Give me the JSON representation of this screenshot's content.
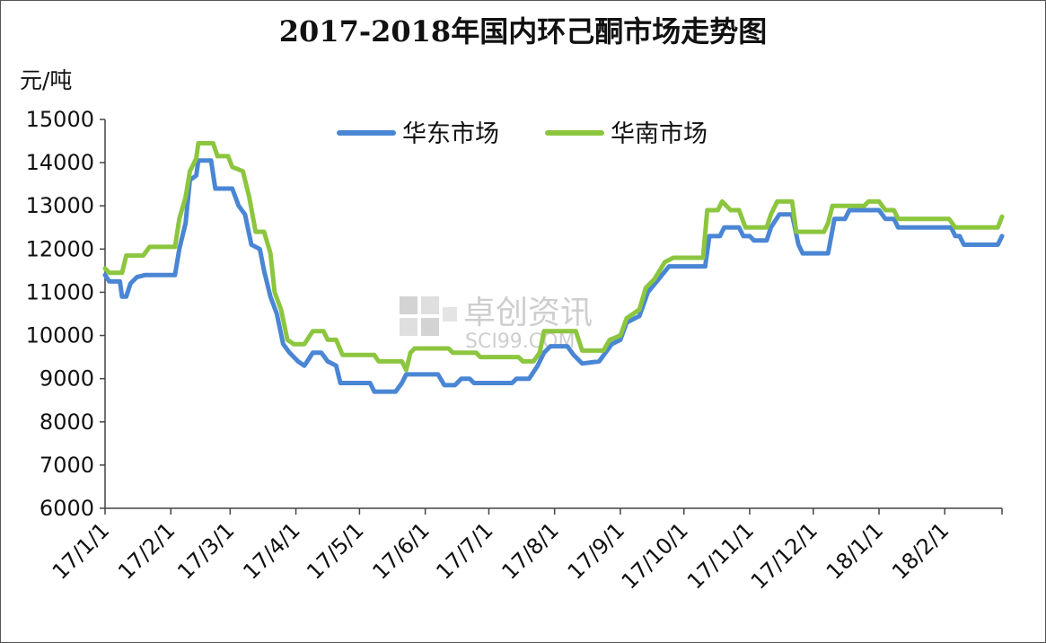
{
  "chart_data": {
    "type": "line",
    "title": "2017-2018年国内环己酮市场走势图",
    "ylabel": "元/吨",
    "xlabel": "",
    "ylim": [
      6000,
      15000
    ],
    "yticks": [
      6000,
      7000,
      8000,
      9000,
      10000,
      11000,
      12000,
      13000,
      14000,
      15000
    ],
    "xlim": [
      "2017-01-01",
      "2018-02-28"
    ],
    "xticks": [
      "17/1/1",
      "17/2/1",
      "17/3/1",
      "17/4/1",
      "17/5/1",
      "17/6/1",
      "17/7/1",
      "17/8/1",
      "17/9/1",
      "17/10/1",
      "17/11/1",
      "17/12/1",
      "18/1/1",
      "18/2/1"
    ],
    "xtick_dates": [
      "2017-01-01",
      "2017-02-01",
      "2017-03-01",
      "2017-04-01",
      "2017-05-01",
      "2017-06-01",
      "2017-07-01",
      "2017-08-01",
      "2017-09-01",
      "2017-10-01",
      "2017-11-01",
      "2017-12-01",
      "2018-01-01",
      "2018-02-01"
    ],
    "grid": false,
    "legend_position": "top",
    "series": [
      {
        "name": "华东市场",
        "color": "#4a86d4",
        "points": [
          [
            "2017-01-01",
            11400
          ],
          [
            "2017-01-03",
            11250
          ],
          [
            "2017-01-08",
            11250
          ],
          [
            "2017-01-09",
            10900
          ],
          [
            "2017-01-11",
            10900
          ],
          [
            "2017-01-13",
            11200
          ],
          [
            "2017-01-16",
            11350
          ],
          [
            "2017-01-20",
            11400
          ],
          [
            "2017-02-03",
            11400
          ],
          [
            "2017-02-05",
            12000
          ],
          [
            "2017-02-08",
            12600
          ],
          [
            "2017-02-10",
            13600
          ],
          [
            "2017-02-13",
            13700
          ],
          [
            "2017-02-14",
            14050
          ],
          [
            "2017-02-20",
            14050
          ],
          [
            "2017-02-22",
            13400
          ],
          [
            "2017-03-02",
            13400
          ],
          [
            "2017-03-05",
            13000
          ],
          [
            "2017-03-08",
            12800
          ],
          [
            "2017-03-11",
            12100
          ],
          [
            "2017-03-15",
            12000
          ],
          [
            "2017-03-17",
            11500
          ],
          [
            "2017-03-20",
            10900
          ],
          [
            "2017-03-23",
            10500
          ],
          [
            "2017-03-26",
            9800
          ],
          [
            "2017-03-29",
            9600
          ],
          [
            "2017-04-02",
            9400
          ],
          [
            "2017-04-05",
            9300
          ],
          [
            "2017-04-09",
            9600
          ],
          [
            "2017-04-13",
            9600
          ],
          [
            "2017-04-16",
            9400
          ],
          [
            "2017-04-20",
            9300
          ],
          [
            "2017-04-22",
            8900
          ],
          [
            "2017-05-06",
            8900
          ],
          [
            "2017-05-08",
            8700
          ],
          [
            "2017-05-18",
            8700
          ],
          [
            "2017-05-21",
            8900
          ],
          [
            "2017-05-23",
            9100
          ],
          [
            "2017-06-07",
            9100
          ],
          [
            "2017-06-10",
            8850
          ],
          [
            "2017-06-15",
            8850
          ],
          [
            "2017-06-18",
            9000
          ],
          [
            "2017-06-22",
            9000
          ],
          [
            "2017-06-24",
            8900
          ],
          [
            "2017-07-12",
            8900
          ],
          [
            "2017-07-14",
            9000
          ],
          [
            "2017-07-20",
            9000
          ],
          [
            "2017-07-24",
            9300
          ],
          [
            "2017-07-27",
            9600
          ],
          [
            "2017-07-30",
            9750
          ],
          [
            "2017-08-07",
            9750
          ],
          [
            "2017-08-10",
            9550
          ],
          [
            "2017-08-14",
            9350
          ],
          [
            "2017-08-22",
            9400
          ],
          [
            "2017-08-28",
            9800
          ],
          [
            "2017-09-01",
            9900
          ],
          [
            "2017-09-04",
            10300
          ],
          [
            "2017-09-10",
            10450
          ],
          [
            "2017-09-14",
            11000
          ],
          [
            "2017-09-19",
            11300
          ],
          [
            "2017-09-24",
            11600
          ],
          [
            "2017-10-11",
            11600
          ],
          [
            "2017-10-13",
            12300
          ],
          [
            "2017-10-18",
            12300
          ],
          [
            "2017-10-20",
            12500
          ],
          [
            "2017-10-27",
            12500
          ],
          [
            "2017-10-29",
            12300
          ],
          [
            "2017-11-01",
            12300
          ],
          [
            "2017-11-03",
            12200
          ],
          [
            "2017-11-09",
            12200
          ],
          [
            "2017-11-11",
            12500
          ],
          [
            "2017-11-15",
            12800
          ],
          [
            "2017-11-21",
            12800
          ],
          [
            "2017-11-24",
            12100
          ],
          [
            "2017-11-26",
            11900
          ],
          [
            "2017-12-08",
            11900
          ],
          [
            "2017-12-11",
            12700
          ],
          [
            "2017-12-16",
            12700
          ],
          [
            "2017-12-18",
            12900
          ],
          [
            "2018-01-01",
            12900
          ],
          [
            "2018-01-04",
            12700
          ],
          [
            "2018-01-08",
            12700
          ],
          [
            "2018-01-10",
            12500
          ],
          [
            "2018-02-04",
            12500
          ],
          [
            "2018-02-06",
            12300
          ],
          [
            "2018-02-08",
            12300
          ],
          [
            "2018-02-10",
            12100
          ],
          [
            "2018-02-26",
            12100
          ],
          [
            "2018-02-28",
            12300
          ]
        ]
      },
      {
        "name": "华南市场",
        "color": "#8cc63f",
        "points": [
          [
            "2017-01-01",
            11550
          ],
          [
            "2017-01-03",
            11450
          ],
          [
            "2017-01-09",
            11450
          ],
          [
            "2017-01-11",
            11850
          ],
          [
            "2017-01-19",
            11850
          ],
          [
            "2017-01-22",
            12050
          ],
          [
            "2017-02-03",
            12050
          ],
          [
            "2017-02-05",
            12700
          ],
          [
            "2017-02-08",
            13200
          ],
          [
            "2017-02-10",
            13800
          ],
          [
            "2017-02-13",
            14100
          ],
          [
            "2017-02-14",
            14450
          ],
          [
            "2017-02-21",
            14450
          ],
          [
            "2017-02-23",
            14150
          ],
          [
            "2017-02-28",
            14150
          ],
          [
            "2017-03-02",
            13900
          ],
          [
            "2017-03-07",
            13800
          ],
          [
            "2017-03-10",
            13200
          ],
          [
            "2017-03-13",
            12400
          ],
          [
            "2017-03-17",
            12400
          ],
          [
            "2017-03-20",
            11900
          ],
          [
            "2017-03-22",
            11000
          ],
          [
            "2017-03-25",
            10600
          ],
          [
            "2017-03-28",
            9900
          ],
          [
            "2017-03-31",
            9800
          ],
          [
            "2017-04-05",
            9800
          ],
          [
            "2017-04-09",
            10100
          ],
          [
            "2017-04-14",
            10100
          ],
          [
            "2017-04-16",
            9900
          ],
          [
            "2017-04-20",
            9900
          ],
          [
            "2017-04-23",
            9550
          ],
          [
            "2017-05-08",
            9550
          ],
          [
            "2017-05-10",
            9400
          ],
          [
            "2017-05-21",
            9400
          ],
          [
            "2017-05-23",
            9200
          ],
          [
            "2017-05-25",
            9600
          ],
          [
            "2017-05-27",
            9700
          ],
          [
            "2017-06-12",
            9700
          ],
          [
            "2017-06-14",
            9600
          ],
          [
            "2017-06-25",
            9600
          ],
          [
            "2017-06-27",
            9500
          ],
          [
            "2017-07-15",
            9500
          ],
          [
            "2017-07-17",
            9400
          ],
          [
            "2017-07-22",
            9400
          ],
          [
            "2017-07-25",
            9600
          ],
          [
            "2017-07-27",
            10100
          ],
          [
            "2017-08-11",
            10100
          ],
          [
            "2017-08-14",
            9650
          ],
          [
            "2017-08-24",
            9650
          ],
          [
            "2017-08-27",
            9900
          ],
          [
            "2017-09-01",
            10000
          ],
          [
            "2017-09-04",
            10400
          ],
          [
            "2017-09-10",
            10600
          ],
          [
            "2017-09-13",
            11100
          ],
          [
            "2017-09-17",
            11300
          ],
          [
            "2017-09-22",
            11700
          ],
          [
            "2017-09-26",
            11800
          ],
          [
            "2017-10-10",
            11800
          ],
          [
            "2017-10-12",
            12900
          ],
          [
            "2017-10-17",
            12900
          ],
          [
            "2017-10-19",
            13100
          ],
          [
            "2017-10-23",
            12900
          ],
          [
            "2017-10-27",
            12900
          ],
          [
            "2017-10-30",
            12500
          ],
          [
            "2017-11-09",
            12500
          ],
          [
            "2017-11-11",
            12800
          ],
          [
            "2017-11-14",
            13100
          ],
          [
            "2017-11-21",
            13100
          ],
          [
            "2017-11-23",
            12400
          ],
          [
            "2017-12-06",
            12400
          ],
          [
            "2017-12-08",
            12600
          ],
          [
            "2017-12-10",
            13000
          ],
          [
            "2017-12-25",
            13000
          ],
          [
            "2017-12-27",
            13100
          ],
          [
            "2018-01-01",
            13100
          ],
          [
            "2018-01-04",
            12900
          ],
          [
            "2018-01-08",
            12900
          ],
          [
            "2018-01-10",
            12700
          ],
          [
            "2018-02-03",
            12700
          ],
          [
            "2018-02-06",
            12500
          ],
          [
            "2018-02-26",
            12500
          ],
          [
            "2018-02-28",
            12750
          ]
        ]
      }
    ]
  },
  "watermark": {
    "text": "卓创资讯",
    "sub": "SCI99.COM"
  }
}
